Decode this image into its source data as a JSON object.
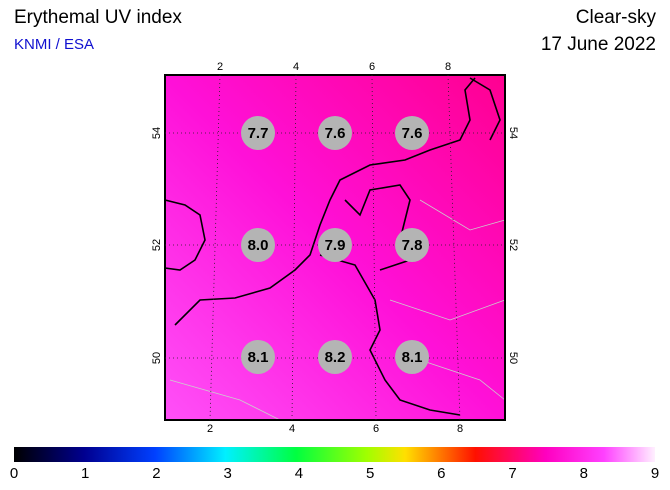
{
  "header": {
    "title": "Erythemal UV index",
    "source": "KNMI / ESA",
    "sky": "Clear-sky",
    "date": "17 June 2022"
  },
  "map": {
    "lon_ticks": [
      2,
      4,
      6,
      8
    ],
    "lat_ticks": [
      54,
      52,
      50
    ],
    "uv_grid": [
      [
        "7.7",
        "7.6",
        "7.6"
      ],
      [
        "8.0",
        "7.9",
        "7.8"
      ],
      [
        "8.1",
        "8.2",
        "8.1"
      ]
    ]
  },
  "colorbar": {
    "ticks": [
      0,
      1,
      2,
      3,
      4,
      5,
      6,
      7,
      8,
      9
    ]
  }
}
